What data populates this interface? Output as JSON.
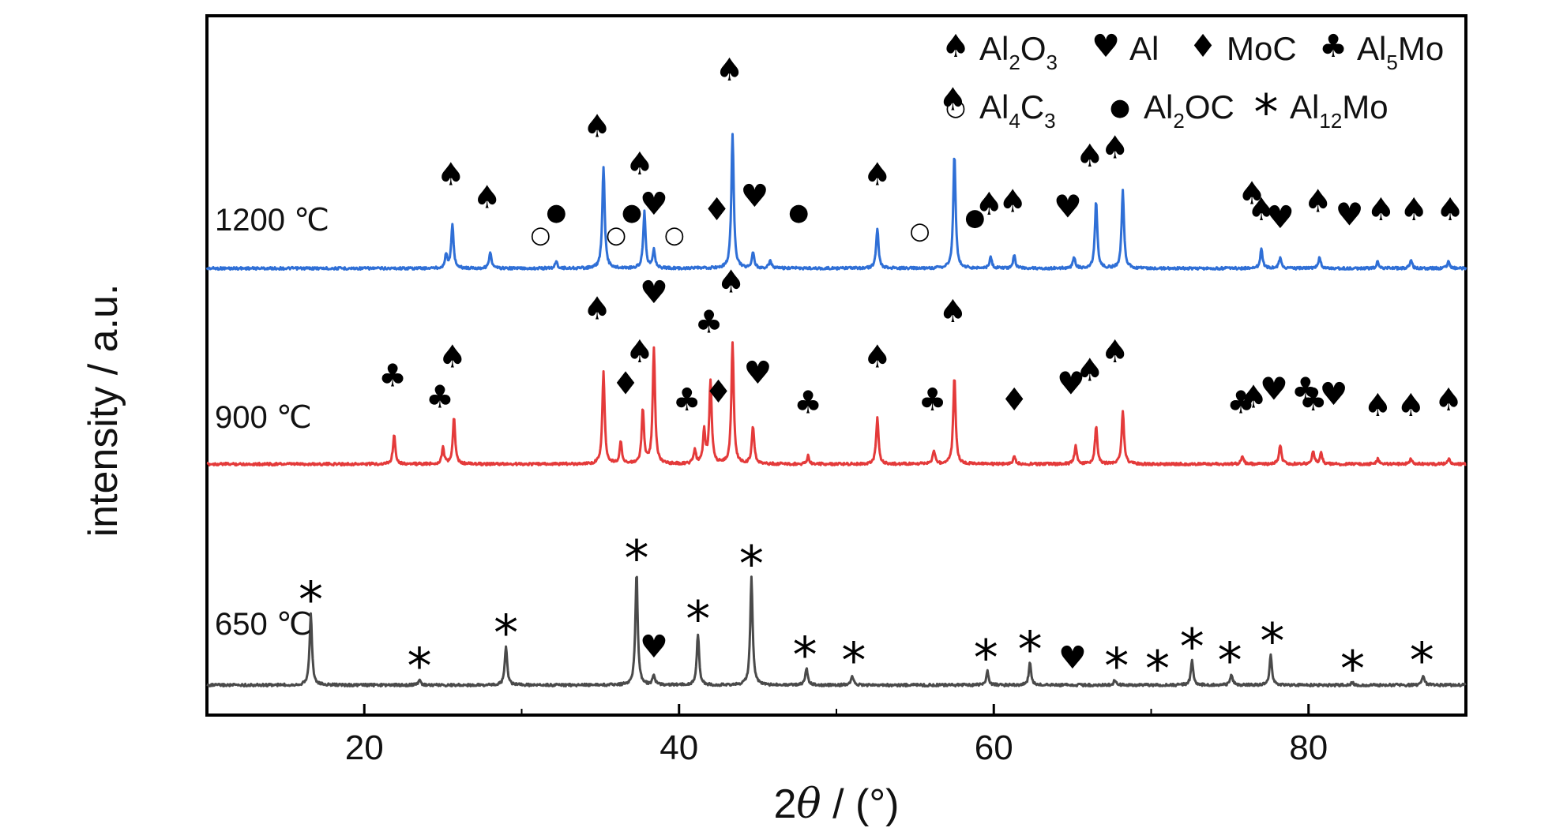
{
  "chart_data": {
    "type": "line",
    "xlabel": "2θ / (°)",
    "xlabel_parts": {
      "main": "2",
      "italic": "θ",
      "unit": " / (°)"
    },
    "ylabel": "intensity / a.u.",
    "xlim": [
      10,
      90
    ],
    "xticks": [
      20,
      40,
      60,
      80
    ],
    "legend": {
      "position": "top-right",
      "entries": [
        {
          "symbol": "♠",
          "label": "Al2O3",
          "base": "Al",
          "sub": "2",
          "rest": "O",
          "sub2": "3"
        },
        {
          "symbol": "♥",
          "label": "Al",
          "base": "Al"
        },
        {
          "symbol": "♦",
          "label": "MoC",
          "base": "MoC"
        },
        {
          "symbol": "♣",
          "label": "Al5Mo",
          "base": "Al",
          "sub": "5",
          "rest": "Mo"
        },
        {
          "symbol": "○",
          "label": "Al4C3",
          "base": "Al",
          "sub": "4",
          "rest": "C",
          "sub2": "3"
        },
        {
          "symbol": "●",
          "label": "Al2OC",
          "base": "Al",
          "sub": "2",
          "rest": "OC"
        },
        {
          "symbol": "*",
          "label": "Al12Mo",
          "base": "Al",
          "sub": "12",
          "rest": "Mo"
        }
      ]
    },
    "series": [
      {
        "name": "1200 ℃",
        "color": "#2f6fd6",
        "baseline": 0.0,
        "peaks": [
          [
            25.2,
            0.1
          ],
          [
            25.6,
            0.32
          ],
          [
            28.0,
            0.12
          ],
          [
            32.2,
            0.05
          ],
          [
            35.2,
            0.76
          ],
          [
            37.8,
            0.42
          ],
          [
            38.4,
            0.14
          ],
          [
            43.4,
            1.0
          ],
          [
            44.7,
            0.12
          ],
          [
            45.8,
            0.06
          ],
          [
            52.6,
            0.3
          ],
          [
            57.5,
            0.85
          ],
          [
            59.8,
            0.08
          ],
          [
            61.3,
            0.1
          ],
          [
            65.1,
            0.08
          ],
          [
            66.5,
            0.5
          ],
          [
            68.2,
            0.58
          ],
          [
            77.0,
            0.14
          ],
          [
            78.2,
            0.08
          ],
          [
            80.7,
            0.08
          ],
          [
            84.4,
            0.05
          ],
          [
            86.5,
            0.06
          ],
          [
            88.9,
            0.05
          ]
        ],
        "markers": [
          {
            "s": "♠",
            "x": 25.5,
            "y": 0.62
          },
          {
            "s": "♠",
            "x": 27.8,
            "y": 0.45
          },
          {
            "s": "○",
            "x": 31.2,
            "y": 0.19
          },
          {
            "s": "●",
            "x": 32.2,
            "y": 0.36
          },
          {
            "s": "♠",
            "x": 34.8,
            "y": 0.98
          },
          {
            "s": "○",
            "x": 36.0,
            "y": 0.19
          },
          {
            "s": "●",
            "x": 37.0,
            "y": 0.36
          },
          {
            "s": "♠",
            "x": 37.5,
            "y": 0.7
          },
          {
            "s": "♥",
            "x": 38.4,
            "y": 0.4
          },
          {
            "s": "○",
            "x": 39.7,
            "y": 0.19
          },
          {
            "s": "♦",
            "x": 42.4,
            "y": 0.36
          },
          {
            "s": "♠",
            "x": 43.2,
            "y": 1.4
          },
          {
            "s": "♥",
            "x": 44.8,
            "y": 0.46
          },
          {
            "s": "●",
            "x": 47.6,
            "y": 0.36
          },
          {
            "s": "♠",
            "x": 52.6,
            "y": 0.62
          },
          {
            "s": "○",
            "x": 55.3,
            "y": 0.22
          },
          {
            "s": "♠",
            "x": 57.4,
            "y": 1.18
          },
          {
            "s": "●",
            "x": 58.8,
            "y": 0.32
          },
          {
            "s": "♠",
            "x": 59.7,
            "y": 0.4
          },
          {
            "s": "♠",
            "x": 61.2,
            "y": 0.42
          },
          {
            "s": "♥",
            "x": 64.7,
            "y": 0.38
          },
          {
            "s": "♠",
            "x": 66.1,
            "y": 0.76
          },
          {
            "s": "♠",
            "x": 67.7,
            "y": 0.82
          },
          {
            "s": "♠",
            "x": 76.4,
            "y": 0.48
          },
          {
            "s": "♠",
            "x": 77.0,
            "y": 0.36
          },
          {
            "s": "♥",
            "x": 78.2,
            "y": 0.3
          },
          {
            "s": "♠",
            "x": 80.6,
            "y": 0.42
          },
          {
            "s": "♥",
            "x": 82.6,
            "y": 0.32
          },
          {
            "s": "♠",
            "x": 84.6,
            "y": 0.36
          },
          {
            "s": "♠",
            "x": 86.7,
            "y": 0.36
          },
          {
            "s": "♠",
            "x": 89.0,
            "y": 0.36
          }
        ]
      },
      {
        "name": "900 ℃",
        "color": "#e43a3a",
        "baseline": 0.0,
        "peaks": [
          [
            21.9,
            0.22
          ],
          [
            25.0,
            0.12
          ],
          [
            25.7,
            0.34
          ],
          [
            35.2,
            0.68
          ],
          [
            36.3,
            0.16
          ],
          [
            37.7,
            0.4
          ],
          [
            38.4,
            0.86
          ],
          [
            41.0,
            0.1
          ],
          [
            41.6,
            0.24
          ],
          [
            42.0,
            0.62
          ],
          [
            43.4,
            0.9
          ],
          [
            44.7,
            0.28
          ],
          [
            48.2,
            0.06
          ],
          [
            52.6,
            0.34
          ],
          [
            56.2,
            0.1
          ],
          [
            57.5,
            0.66
          ],
          [
            61.3,
            0.06
          ],
          [
            65.2,
            0.14
          ],
          [
            66.5,
            0.28
          ],
          [
            68.2,
            0.4
          ],
          [
            75.8,
            0.06
          ],
          [
            78.2,
            0.14
          ],
          [
            80.3,
            0.1
          ],
          [
            80.8,
            0.08
          ],
          [
            84.4,
            0.04
          ],
          [
            86.5,
            0.04
          ],
          [
            88.9,
            0.04
          ]
        ],
        "markers": [
          {
            "s": "♣",
            "x": 21.8,
            "y": 0.58
          },
          {
            "s": "♣",
            "x": 24.8,
            "y": 0.42
          },
          {
            "s": "♠",
            "x": 25.6,
            "y": 0.72
          },
          {
            "s": "♠",
            "x": 34.8,
            "y": 1.08
          },
          {
            "s": "♦",
            "x": 36.6,
            "y": 0.52
          },
          {
            "s": "♠",
            "x": 37.5,
            "y": 0.76
          },
          {
            "s": "♥",
            "x": 38.4,
            "y": 1.2
          },
          {
            "s": "♣",
            "x": 40.5,
            "y": 0.4
          },
          {
            "s": "♣",
            "x": 41.9,
            "y": 0.98
          },
          {
            "s": "♦",
            "x": 42.5,
            "y": 0.46
          },
          {
            "s": "♠",
            "x": 43.3,
            "y": 1.28
          },
          {
            "s": "♥",
            "x": 45.0,
            "y": 0.6
          },
          {
            "s": "♣",
            "x": 48.2,
            "y": 0.38
          },
          {
            "s": "♠",
            "x": 52.6,
            "y": 0.72
          },
          {
            "s": "♣",
            "x": 56.1,
            "y": 0.4
          },
          {
            "s": "♠",
            "x": 57.4,
            "y": 1.06
          },
          {
            "s": "♦",
            "x": 61.3,
            "y": 0.4
          },
          {
            "s": "♥",
            "x": 64.9,
            "y": 0.52
          },
          {
            "s": "♠",
            "x": 66.1,
            "y": 0.62
          },
          {
            "s": "♠",
            "x": 67.7,
            "y": 0.76
          },
          {
            "s": "♣",
            "x": 75.7,
            "y": 0.38
          },
          {
            "s": "♠",
            "x": 76.5,
            "y": 0.42
          },
          {
            "s": "♥",
            "x": 77.8,
            "y": 0.48
          },
          {
            "s": "♣",
            "x": 79.8,
            "y": 0.48
          },
          {
            "s": "♣",
            "x": 80.3,
            "y": 0.4
          },
          {
            "s": "♥",
            "x": 81.6,
            "y": 0.44
          },
          {
            "s": "♠",
            "x": 84.4,
            "y": 0.36
          },
          {
            "s": "♠",
            "x": 86.5,
            "y": 0.36
          },
          {
            "s": "♠",
            "x": 88.9,
            "y": 0.4
          }
        ]
      },
      {
        "name": "650 ℃",
        "color": "#4a4a4a",
        "baseline": 0.0,
        "peaks": [
          [
            16.6,
            0.52
          ],
          [
            23.5,
            0.04
          ],
          [
            29.0,
            0.28
          ],
          [
            37.3,
            0.82
          ],
          [
            38.4,
            0.07
          ],
          [
            41.2,
            0.37
          ],
          [
            44.6,
            0.78
          ],
          [
            48.1,
            0.12
          ],
          [
            51.0,
            0.07
          ],
          [
            59.6,
            0.1
          ],
          [
            62.3,
            0.16
          ],
          [
            67.7,
            0.04
          ],
          [
            72.6,
            0.18
          ],
          [
            75.1,
            0.08
          ],
          [
            77.6,
            0.22
          ],
          [
            82.8,
            0.02
          ],
          [
            87.3,
            0.07
          ]
        ],
        "markers": [
          {
            "s": "*",
            "x": 16.6,
            "y": 0.62
          },
          {
            "s": "*",
            "x": 23.5,
            "y": 0.14
          },
          {
            "s": "*",
            "x": 29.0,
            "y": 0.38
          },
          {
            "s": "*",
            "x": 37.3,
            "y": 0.92
          },
          {
            "s": "♥",
            "x": 38.4,
            "y": 0.2
          },
          {
            "s": "*",
            "x": 41.2,
            "y": 0.48
          },
          {
            "s": "*",
            "x": 44.6,
            "y": 0.88
          },
          {
            "s": "*",
            "x": 48.0,
            "y": 0.22
          },
          {
            "s": "*",
            "x": 51.1,
            "y": 0.18
          },
          {
            "s": "*",
            "x": 59.5,
            "y": 0.2
          },
          {
            "s": "*",
            "x": 62.3,
            "y": 0.26
          },
          {
            "s": "♥",
            "x": 65.0,
            "y": 0.12
          },
          {
            "s": "*",
            "x": 67.8,
            "y": 0.14
          },
          {
            "s": "*",
            "x": 70.4,
            "y": 0.12
          },
          {
            "s": "*",
            "x": 72.6,
            "y": 0.28
          },
          {
            "s": "*",
            "x": 75.0,
            "y": 0.18
          },
          {
            "s": "*",
            "x": 77.7,
            "y": 0.32
          },
          {
            "s": "*",
            "x": 82.8,
            "y": 0.12
          },
          {
            "s": "*",
            "x": 87.2,
            "y": 0.18
          }
        ]
      }
    ]
  }
}
